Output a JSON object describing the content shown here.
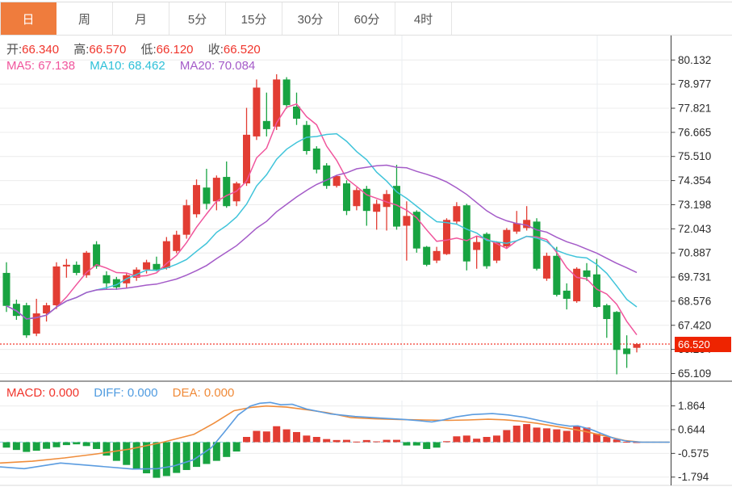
{
  "toolbar": {
    "tabs": [
      {
        "label": "日",
        "active": true
      },
      {
        "label": "周",
        "active": false
      },
      {
        "label": "月",
        "active": false
      },
      {
        "label": "5分",
        "active": false
      },
      {
        "label": "15分",
        "active": false
      },
      {
        "label": "30分",
        "active": false
      },
      {
        "label": "60分",
        "active": false
      },
      {
        "label": "4时",
        "active": false
      }
    ]
  },
  "ohlc_bar": {
    "open_label": "开:",
    "open": "66.340",
    "high_label": "高:",
    "high": "66.570",
    "low_label": "低:",
    "low": "66.120",
    "close_label": "收:",
    "close": "66.520"
  },
  "ma_bar": {
    "ma5_label": "MA5:",
    "ma5": "67.138",
    "ma10_label": "MA10:",
    "ma10": "68.462",
    "ma20_label": "MA20:",
    "ma20": "70.084"
  },
  "macd_bar": {
    "macd_label": "MACD:",
    "macd": "0.000",
    "diff_label": "DIFF:",
    "diff": "0.000",
    "dea_label": "DEA:",
    "dea": "0.000"
  },
  "price_badge": {
    "value": "66.520"
  },
  "colors": {
    "tab_active_bg": "#ef7c3d",
    "candle_up_red": "#e23d33",
    "candle_down_green": "#18a341",
    "ma5_pink": "#f0559c",
    "ma10_cyan": "#40c4da",
    "ma20_purple": "#a45bc8",
    "diff_blue": "#5b9ce0",
    "dea_orange": "#ef8d3c",
    "current_price_line": "#f23a2e",
    "badge_bg": "#ee2400",
    "grid": "#ececec",
    "axis_line": "#3c3c3c",
    "zero_dash_cyan": "#9ed6e6"
  },
  "chart_data": {
    "type": "candlestick+macd",
    "legend": [
      "MA5",
      "MA10",
      "MA20",
      "MACD",
      "DIFF",
      "DEA"
    ],
    "price_axis": {
      "ticks": [
        80.132,
        78.977,
        77.821,
        76.665,
        75.51,
        74.354,
        73.198,
        72.043,
        70.887,
        69.731,
        68.576,
        67.42,
        66.264,
        65.109
      ],
      "current_price": 66.52
    },
    "macd_axis": {
      "ticks": [
        1.864,
        0.644,
        -0.575,
        -1.794
      ],
      "zero": 0.0
    },
    "ma_periods": [
      5,
      10,
      20
    ],
    "vertical_gridlines_x": [
      498,
      740
    ],
    "candles_ohlc": [
      [
        69.93,
        70.44,
        68.06,
        68.35
      ],
      [
        68.45,
        68.65,
        67.68,
        67.87
      ],
      [
        68.38,
        68.5,
        66.82,
        66.94
      ],
      [
        67.02,
        68.69,
        66.9,
        67.99
      ],
      [
        67.99,
        68.5,
        67.6,
        68.38
      ],
      [
        68.38,
        70.44,
        68.2,
        70.24
      ],
      [
        70.24,
        70.6,
        69.7,
        70.32
      ],
      [
        70.32,
        70.48,
        69.82,
        69.93
      ],
      [
        69.82,
        70.98,
        69.7,
        70.9
      ],
      [
        71.3,
        71.45,
        70.13,
        70.24
      ],
      [
        69.82,
        70.01,
        69.16,
        69.43
      ],
      [
        69.63,
        69.74,
        69.12,
        69.24
      ],
      [
        69.43,
        69.93,
        69.2,
        69.82
      ],
      [
        69.7,
        70.2,
        69.55,
        70.09
      ],
      [
        70.09,
        70.56,
        69.9,
        70.44
      ],
      [
        70.36,
        70.71,
        70.01,
        70.09
      ],
      [
        70.16,
        71.65,
        70.09,
        71.45
      ],
      [
        70.98,
        71.95,
        70.87,
        71.76
      ],
      [
        71.76,
        73.44,
        71.57,
        73.17
      ],
      [
        72.74,
        74.41,
        72.58,
        74.14
      ],
      [
        74.02,
        74.92,
        72.97,
        73.24
      ],
      [
        73.36,
        74.6,
        72.93,
        74.49
      ],
      [
        74.53,
        75.27,
        73.05,
        73.13
      ],
      [
        73.36,
        74.3,
        73.13,
        74.22
      ],
      [
        74.22,
        77.84,
        74.1,
        76.55
      ],
      [
        76.47,
        79.2,
        76.3,
        78.81
      ],
      [
        77.21,
        78.57,
        76.47,
        76.82
      ],
      [
        76.94,
        79.45,
        76.78,
        79.2
      ],
      [
        79.2,
        79.31,
        77.8,
        77.97
      ],
      [
        77.9,
        78.57,
        77.02,
        77.32
      ],
      [
        77.02,
        77.21,
        75.6,
        75.77
      ],
      [
        75.89,
        76.0,
        74.7,
        74.88
      ],
      [
        75.08,
        75.19,
        73.96,
        74.1
      ],
      [
        74.1,
        74.6,
        74.02,
        74.57
      ],
      [
        74.22,
        74.37,
        72.7,
        72.9
      ],
      [
        73.13,
        74.02,
        72.93,
        73.9
      ],
      [
        73.96,
        74.1,
        72.19,
        72.9
      ],
      [
        72.86,
        73.44,
        72.0,
        73.24
      ],
      [
        73.09,
        73.9,
        71.96,
        73.71
      ],
      [
        74.1,
        75.11,
        72.0,
        72.15
      ],
      [
        72.19,
        73.36,
        70.52,
        72.66
      ],
      [
        72.86,
        72.93,
        70.9,
        71.1
      ],
      [
        71.18,
        71.22,
        70.25,
        70.32
      ],
      [
        70.52,
        71.18,
        70.4,
        70.98
      ],
      [
        70.83,
        72.55,
        70.79,
        72.47
      ],
      [
        72.39,
        73.32,
        72.27,
        73.13
      ],
      [
        73.17,
        73.24,
        70.05,
        70.48
      ],
      [
        71.03,
        71.68,
        70.13,
        71.41
      ],
      [
        71.8,
        71.87,
        70.13,
        70.25
      ],
      [
        70.52,
        71.45,
        70.4,
        71.38
      ],
      [
        71.2,
        72.08,
        71.1,
        71.99
      ],
      [
        71.91,
        72.9,
        71.8,
        72.31
      ],
      [
        72.08,
        73.13,
        71.96,
        72.47
      ],
      [
        72.39,
        72.55,
        70.05,
        70.13
      ],
      [
        69.66,
        70.9,
        69.55,
        70.75
      ],
      [
        70.75,
        71.18,
        68.8,
        68.88
      ],
      [
        69.08,
        69.43,
        68.18,
        68.69
      ],
      [
        68.57,
        70.2,
        68.5,
        70.13
      ],
      [
        70.05,
        70.4,
        69.55,
        69.74
      ],
      [
        69.86,
        70.6,
        68.26,
        68.3
      ],
      [
        68.38,
        68.45,
        66.82,
        67.72
      ],
      [
        68.06,
        68.1,
        65.07,
        66.24
      ],
      [
        66.31,
        66.94,
        65.38,
        66.04
      ],
      [
        66.34,
        66.57,
        66.12,
        66.52
      ]
    ],
    "macd_histogram": [
      -0.28,
      -0.4,
      -0.5,
      -0.44,
      -0.34,
      -0.26,
      -0.15,
      -0.11,
      -0.2,
      -0.35,
      -0.69,
      -0.96,
      -1.17,
      -1.38,
      -1.6,
      -1.83,
      -1.74,
      -1.58,
      -1.43,
      -1.27,
      -1.12,
      -0.96,
      -0.76,
      -0.48,
      0.27,
      0.58,
      0.55,
      0.82,
      0.66,
      0.52,
      0.34,
      0.27,
      0.16,
      0.11,
      0.12,
      0.03,
      0.11,
      0.04,
      0.12,
      0.12,
      -0.17,
      -0.17,
      -0.35,
      -0.28,
      0.05,
      0.3,
      0.34,
      0.18,
      0.27,
      0.34,
      0.62,
      0.85,
      0.93,
      0.75,
      0.71,
      0.66,
      0.58,
      0.82,
      0.75,
      0.44,
      0.27,
      0.14,
      0.02,
      0.0
    ],
    "diff_line": [
      [
        0,
        -1.27
      ],
      [
        30,
        -1.36
      ],
      [
        75,
        -1.07
      ],
      [
        110,
        -1.19
      ],
      [
        165,
        -1.38
      ],
      [
        195,
        -1.36
      ],
      [
        215,
        -1.23
      ],
      [
        240,
        -0.9
      ],
      [
        262,
        -0.28
      ],
      [
        278,
        0.52
      ],
      [
        295,
        1.4
      ],
      [
        310,
        1.85
      ],
      [
        322,
        2.0
      ],
      [
        335,
        2.04
      ],
      [
        348,
        1.92
      ],
      [
        362,
        1.95
      ],
      [
        380,
        1.7
      ],
      [
        410,
        1.45
      ],
      [
        440,
        1.32
      ],
      [
        470,
        1.24
      ],
      [
        500,
        1.17
      ],
      [
        520,
        1.1
      ],
      [
        535,
        1.04
      ],
      [
        550,
        1.15
      ],
      [
        565,
        1.3
      ],
      [
        585,
        1.42
      ],
      [
        610,
        1.47
      ],
      [
        630,
        1.4
      ],
      [
        650,
        1.28
      ],
      [
        670,
        1.1
      ],
      [
        690,
        0.92
      ],
      [
        706,
        0.82
      ],
      [
        716,
        0.84
      ],
      [
        732,
        0.66
      ],
      [
        748,
        0.4
      ],
      [
        762,
        0.18
      ],
      [
        778,
        0.04
      ],
      [
        795,
        0.0
      ],
      [
        830,
        0.0
      ]
    ],
    "dea_line": [
      [
        0,
        -1.07
      ],
      [
        40,
        -0.98
      ],
      [
        80,
        -0.81
      ],
      [
        120,
        -0.6
      ],
      [
        160,
        -0.36
      ],
      [
        200,
        -0.02
      ],
      [
        240,
        0.4
      ],
      [
        265,
        0.97
      ],
      [
        290,
        1.62
      ],
      [
        310,
        1.78
      ],
      [
        330,
        1.86
      ],
      [
        355,
        1.8
      ],
      [
        380,
        1.67
      ],
      [
        405,
        1.52
      ],
      [
        435,
        1.26
      ],
      [
        465,
        1.2
      ],
      [
        495,
        1.16
      ],
      [
        525,
        1.14
      ],
      [
        555,
        1.12
      ],
      [
        580,
        1.14
      ],
      [
        605,
        1.18
      ],
      [
        625,
        1.15
      ],
      [
        645,
        1.08
      ],
      [
        665,
        0.97
      ],
      [
        685,
        0.84
      ],
      [
        705,
        0.7
      ],
      [
        725,
        0.55
      ],
      [
        745,
        0.36
      ],
      [
        760,
        0.22
      ],
      [
        775,
        0.08
      ],
      [
        795,
        0.0
      ],
      [
        830,
        0.0
      ]
    ]
  }
}
